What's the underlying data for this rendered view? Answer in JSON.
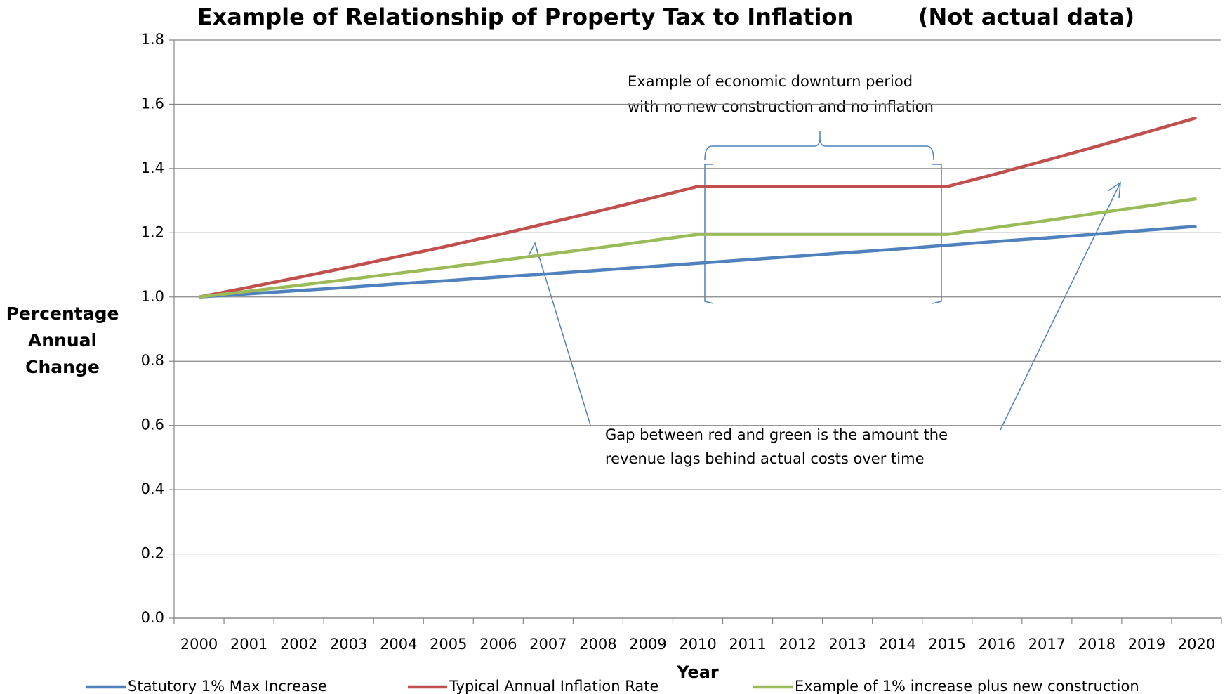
{
  "chart_data": {
    "type": "line",
    "title": "Example of Relationship of Property Tax to Inflation",
    "subtitle": "(Not actual data)",
    "x_label": "Year",
    "y_label": "Percentage Annual Change",
    "categories": [
      "2000",
      "2001",
      "2002",
      "2003",
      "2004",
      "2005",
      "2006",
      "2007",
      "2008",
      "2009",
      "2010",
      "2011",
      "2012",
      "2013",
      "2014",
      "2015",
      "2016",
      "2017",
      "2018",
      "2019",
      "2020"
    ],
    "series": [
      {
        "name": "Statutory 1% Max Increase",
        "color": "#4f81bd",
        "values": [
          1.0,
          1.01,
          1.02,
          1.03,
          1.041,
          1.051,
          1.062,
          1.072,
          1.083,
          1.094,
          1.105,
          1.116,
          1.127,
          1.138,
          1.149,
          1.161,
          1.173,
          1.184,
          1.196,
          1.208,
          1.22
        ]
      },
      {
        "name": "Typical Annual Inflation Rate",
        "color": "#c0504d",
        "values": [
          1.0,
          1.03,
          1.061,
          1.093,
          1.126,
          1.159,
          1.194,
          1.23,
          1.267,
          1.305,
          1.344,
          1.344,
          1.344,
          1.344,
          1.344,
          1.344,
          1.384,
          1.426,
          1.469,
          1.513,
          1.558
        ]
      },
      {
        "name": "Example of 1% increase plus new construction",
        "color": "#9bbb59",
        "values": [
          1.0,
          1.018,
          1.036,
          1.055,
          1.074,
          1.093,
          1.113,
          1.133,
          1.153,
          1.174,
          1.195,
          1.195,
          1.195,
          1.195,
          1.195,
          1.195,
          1.217,
          1.238,
          1.261,
          1.283,
          1.306
        ]
      }
    ],
    "ylim": [
      0,
      1.8
    ],
    "yticks": [
      {
        "value": 0,
        "label": "0.0"
      },
      0.2,
      0.4,
      0.6,
      0.8,
      {
        "value": 1,
        "label": "1.0"
      },
      1.2,
      1.4,
      1.6,
      1.8
    ],
    "grid": true,
    "legend": "bottom",
    "annotations": [
      [
        "Example of economic downturn period",
        "with no new construction and no inflation"
      ],
      [
        "Gap between red and green is the amount the",
        "revenue lags behind actual costs over time"
      ]
    ]
  }
}
